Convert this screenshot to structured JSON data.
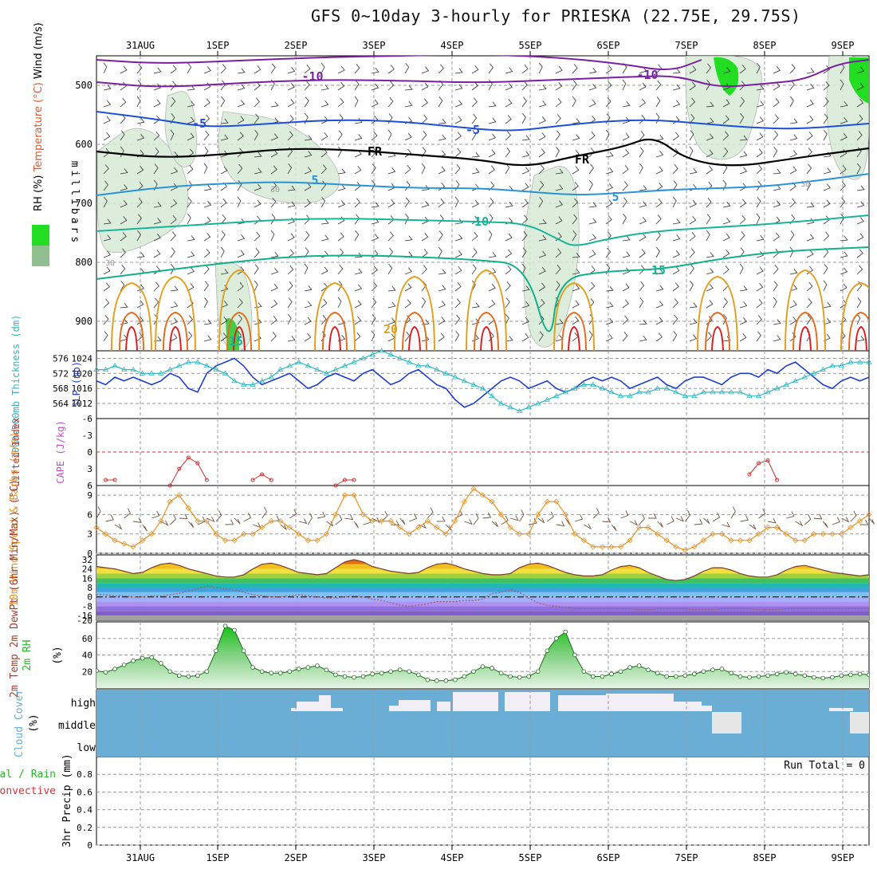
{
  "title": "GFS 0~10day 3-hourly for PRIESKA (22.75E, 29.75S)",
  "colors": {
    "rh": "#2db52d",
    "temp_cold": "#7a1fa2",
    "temp_blue": "#1f4fd6",
    "temp_light": "#2a93d6",
    "temp_teal": "#19b39a",
    "temp_orange": "#e0a020",
    "temp_dark_orange": "#e07020",
    "temp_red": "#d82020",
    "lifted_index": "#d03030",
    "cape": "#c050c0",
    "slp": "#1f3fc8",
    "thickness": "#30b8c0",
    "wind_speed": "#e89020",
    "barbs": "#705040",
    "cloud": "#6aaed6",
    "dewpt": "#a06060",
    "rain": "#2db52d",
    "convective": "#e03030"
  },
  "chart_data": [
    {
      "type": "contour",
      "panel": "upper-air",
      "ylabel_parts": [
        "RH (%)",
        "Temperature (°C)",
        "Wind (m/s)"
      ],
      "yaxis_label": "millibars",
      "yticks": [
        500,
        600,
        700,
        800,
        900
      ],
      "ylim": [
        450,
        950
      ],
      "contour_labels": [
        "-10",
        "-10",
        "-5",
        "-5",
        "FR",
        "FR",
        "5",
        "5",
        "10",
        "15",
        "15",
        "20",
        "30",
        "30",
        "30"
      ]
    },
    {
      "type": "line",
      "panel": "pressure-thickness",
      "ylabel_left": "1000-500mb Thickness (dm)",
      "ylabel_right": "SLP (mb)",
      "left_ticks": [
        "576",
        "572",
        "568",
        "564"
      ],
      "right_ticks": [
        "1024",
        "1020",
        "1016",
        "1012"
      ],
      "series": [
        {
          "name": "SLP (mb)",
          "values": [
            1018,
            1017,
            1019,
            1018,
            1019,
            1018,
            1017,
            1018,
            1020,
            1019,
            1016,
            1015,
            1020,
            1022,
            1023,
            1024,
            1022,
            1019,
            1017,
            1018,
            1019,
            1020,
            1018,
            1016,
            1017,
            1019,
            1020,
            1019,
            1018,
            1020,
            1021,
            1019,
            1017,
            1018,
            1020,
            1021,
            1019,
            1017,
            1016,
            1013,
            1011,
            1012,
            1014,
            1016,
            1018,
            1019,
            1018,
            1016,
            1017,
            1018,
            1016,
            1015,
            1016,
            1018,
            1019,
            1018,
            1019,
            1018,
            1016,
            1017,
            1018,
            1019,
            1017,
            1016,
            1018,
            1019,
            1019,
            1018,
            1017,
            1019,
            1020,
            1020,
            1019,
            1021,
            1020,
            1022,
            1023,
            1021,
            1019,
            1017,
            1016,
            1018,
            1019,
            1018,
            1019
          ]
        },
        {
          "name": "1000-500mb Thickness (dm)",
          "values": [
            573,
            573,
            574,
            573,
            573,
            572,
            572,
            572,
            573,
            574,
            575,
            575,
            574,
            573,
            572,
            570,
            569,
            569,
            570,
            571,
            573,
            574,
            575,
            574,
            573,
            572,
            573,
            574,
            575,
            576,
            577,
            578,
            577,
            576,
            575,
            574,
            574,
            573,
            572,
            571,
            570,
            569,
            568,
            566,
            564,
            563,
            562,
            563,
            564,
            565,
            566,
            567,
            568,
            569,
            569,
            568,
            567,
            566,
            566,
            567,
            567,
            568,
            568,
            567,
            566,
            566,
            567,
            567,
            567,
            567,
            567,
            566,
            566,
            567,
            568,
            569,
            570,
            571,
            572,
            573,
            574,
            574,
            575,
            575,
            575
          ]
        }
      ]
    },
    {
      "type": "line",
      "panel": "instability",
      "ylabel_left": "Lifted Index",
      "ylabel_right": "CAPE (J/kg)",
      "yticks": [
        "-6",
        "-3",
        "0",
        "3",
        "6"
      ],
      "ylim": [
        -6,
        6
      ],
      "series": [
        {
          "name": "Lifted Index segment 1",
          "x": [
            1,
            2
          ],
          "values": [
            5,
            5
          ]
        },
        {
          "name": "Lifted Index segment 2",
          "x": [
            8,
            9,
            10,
            11,
            12
          ],
          "values": [
            6,
            3,
            1,
            2,
            5
          ]
        },
        {
          "name": "Lifted Index segment 3",
          "x": [
            17,
            18,
            19
          ],
          "values": [
            5,
            4,
            5
          ]
        },
        {
          "name": "Lifted Index segment 4",
          "x": [
            26,
            27,
            28
          ],
          "values": [
            6,
            5,
            5
          ]
        },
        {
          "name": "Lifted Index segment 5",
          "x": [
            71,
            72,
            73,
            74
          ],
          "values": [
            4,
            2,
            1.5,
            5
          ]
        }
      ]
    },
    {
      "type": "line",
      "panel": "surface-wind",
      "ylabel": "10m Wind Speed & Barbs (m/s)",
      "yticks": [
        "9",
        "6",
        "3",
        "0"
      ],
      "ylim": [
        0,
        10
      ],
      "series": [
        {
          "name": "10m Wind Speed",
          "values": [
            4,
            3,
            2,
            1.5,
            1,
            2,
            3,
            5,
            8,
            9,
            7,
            5,
            5,
            3,
            2,
            2,
            3,
            3,
            4,
            5,
            5,
            4,
            3,
            2,
            2,
            3,
            6,
            9,
            9,
            6,
            5,
            5,
            5,
            4,
            3,
            4,
            5,
            4,
            3,
            5,
            8,
            10,
            9,
            8,
            6,
            4,
            3,
            3,
            6,
            8,
            8,
            6,
            3,
            2,
            1,
            1,
            1,
            1,
            2,
            4,
            4,
            3,
            2,
            1,
            0.5,
            1,
            2,
            3,
            3,
            2,
            2,
            2,
            3,
            4,
            4,
            3,
            2,
            2,
            3,
            3,
            3,
            3,
            4,
            5,
            6
          ]
        }
      ]
    },
    {
      "type": "area",
      "panel": "temperature",
      "ylabel": "2m Temp 2m DewPt (6hr Min/Max) (°C)",
      "yticks": [
        "32",
        "24",
        "16",
        "8",
        "0",
        "-8",
        "-16",
        "-20"
      ],
      "ylim": [
        -20,
        36
      ],
      "series": [
        {
          "name": "2m Temp",
          "values": [
            26,
            25,
            24,
            22,
            20,
            21,
            25,
            28,
            29,
            27,
            24,
            22,
            20,
            18,
            17,
            17,
            19,
            24,
            28,
            29,
            27,
            24,
            21,
            20,
            19,
            20,
            25,
            30,
            32,
            30,
            26,
            24,
            22,
            21,
            20,
            21,
            25,
            28,
            29,
            27,
            24,
            22,
            20,
            19,
            19,
            20,
            25,
            28,
            29,
            27,
            24,
            21,
            19,
            18,
            18,
            19,
            23,
            26,
            27,
            25,
            21,
            18,
            15,
            14,
            15,
            18,
            22,
            25,
            25,
            23,
            20,
            18,
            17,
            17,
            19,
            23,
            26,
            27,
            25,
            23,
            21,
            20,
            19,
            18,
            19
          ]
        },
        {
          "name": "2m DewPt",
          "values": [
            2,
            2,
            1,
            1,
            0,
            0,
            1,
            1,
            2,
            3,
            5,
            7,
            9,
            8,
            7,
            6,
            4,
            2,
            1,
            0,
            0,
            1,
            2,
            1,
            0,
            -1,
            -1,
            0,
            1,
            0,
            -2,
            -3,
            -5,
            -7,
            -8,
            -7,
            -6,
            -4,
            -4,
            -4,
            -3,
            -3,
            -2,
            3,
            4,
            6,
            4,
            -1,
            -5,
            -7,
            -8,
            -9,
            -10,
            -10,
            -10,
            -10,
            -10,
            -10,
            -10,
            -11,
            -11,
            -10,
            -10,
            -10,
            -10,
            -11,
            -11,
            -11,
            -10,
            -10,
            -10,
            -10,
            -11,
            -11,
            -11,
            -10,
            -10,
            -10,
            -10,
            -10,
            -10,
            -10,
            -10,
            -10,
            -10
          ]
        }
      ]
    },
    {
      "type": "area",
      "panel": "relative-humidity",
      "ylabel": "2m RH (%)",
      "yticks": [
        "60",
        "40",
        "20"
      ],
      "ylim": [
        0,
        80
      ],
      "series": [
        {
          "name": "2m RH",
          "values": [
            21,
            19,
            23,
            28,
            33,
            36,
            37,
            30,
            20,
            15,
            14,
            15,
            20,
            45,
            75,
            70,
            45,
            25,
            20,
            18,
            18,
            20,
            23,
            25,
            27,
            22,
            16,
            14,
            13,
            14,
            17,
            18,
            20,
            22,
            20,
            16,
            10,
            9,
            9,
            10,
            14,
            20,
            26,
            24,
            18,
            14,
            13,
            14,
            20,
            45,
            60,
            68,
            40,
            20,
            14,
            14,
            17,
            20,
            25,
            27,
            22,
            18,
            14,
            14,
            15,
            17,
            20,
            22,
            23,
            18,
            14,
            13,
            14,
            15,
            17,
            19,
            17,
            15,
            13,
            12,
            13,
            15,
            16,
            17,
            16
          ]
        }
      ]
    },
    {
      "type": "heatmap",
      "panel": "cloud-cover",
      "ylabel": "Cloud Cover (%)",
      "levels": [
        "high",
        "middle",
        "low"
      ]
    },
    {
      "type": "bar",
      "panel": "precipitation",
      "ylabel": "3hr Precip (mm)",
      "legend_left": [
        "Total / Rain",
        "Convective"
      ],
      "yticks": [
        "0.8",
        "0.6",
        "0.4",
        "0.2",
        "0"
      ],
      "ylim": [
        0,
        1
      ],
      "run_total": "Run Total = 0",
      "values": []
    }
  ],
  "x_axis": {
    "top_labels": [
      "31AUG",
      "1SEP",
      "2SEP",
      "3SEP",
      "4SEP",
      "5SEP",
      "6SEP",
      "7SEP",
      "8SEP",
      "9SEP"
    ],
    "bottom_labels": [
      "31AUG",
      "1SEP",
      "2SEP",
      "3SEP",
      "4SEP",
      "5SEP",
      "6SEP",
      "7SEP",
      "8SEP",
      "9SEP"
    ]
  }
}
